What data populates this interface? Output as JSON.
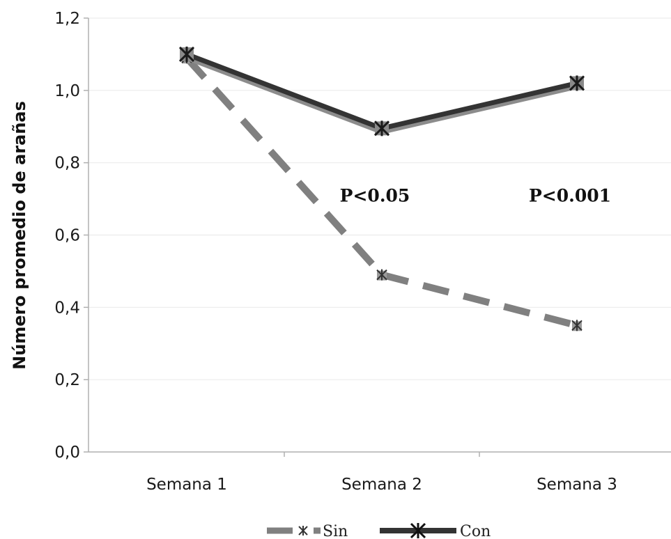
{
  "chart_data": {
    "type": "line",
    "categories": [
      "Semana 1",
      "Semana 2",
      "Semana 3"
    ],
    "series": [
      {
        "name": "Sin",
        "values": [
          1.09,
          0.49,
          0.35
        ],
        "color": "#808080",
        "line_style": "dashed",
        "marker": "asterisk"
      },
      {
        "name": "Con",
        "values": [
          1.1,
          0.895,
          1.02
        ],
        "color": "#333333",
        "line_style": "solid",
        "marker": "asterisk-box"
      }
    ],
    "ylabel": "Número promedio de arañas",
    "ylim": [
      0.0,
      1.2
    ],
    "yticks": [
      "0,0",
      "0,2",
      "0,4",
      "0,6",
      "0,8",
      "1,0",
      "1,2"
    ],
    "grid": true,
    "legend_position": "bottom",
    "annotations": [
      {
        "text": "P<0.05",
        "category": "Semana 2",
        "y": 0.71
      },
      {
        "text": "P<0.001",
        "category": "Semana 3",
        "y": 0.71
      }
    ]
  }
}
